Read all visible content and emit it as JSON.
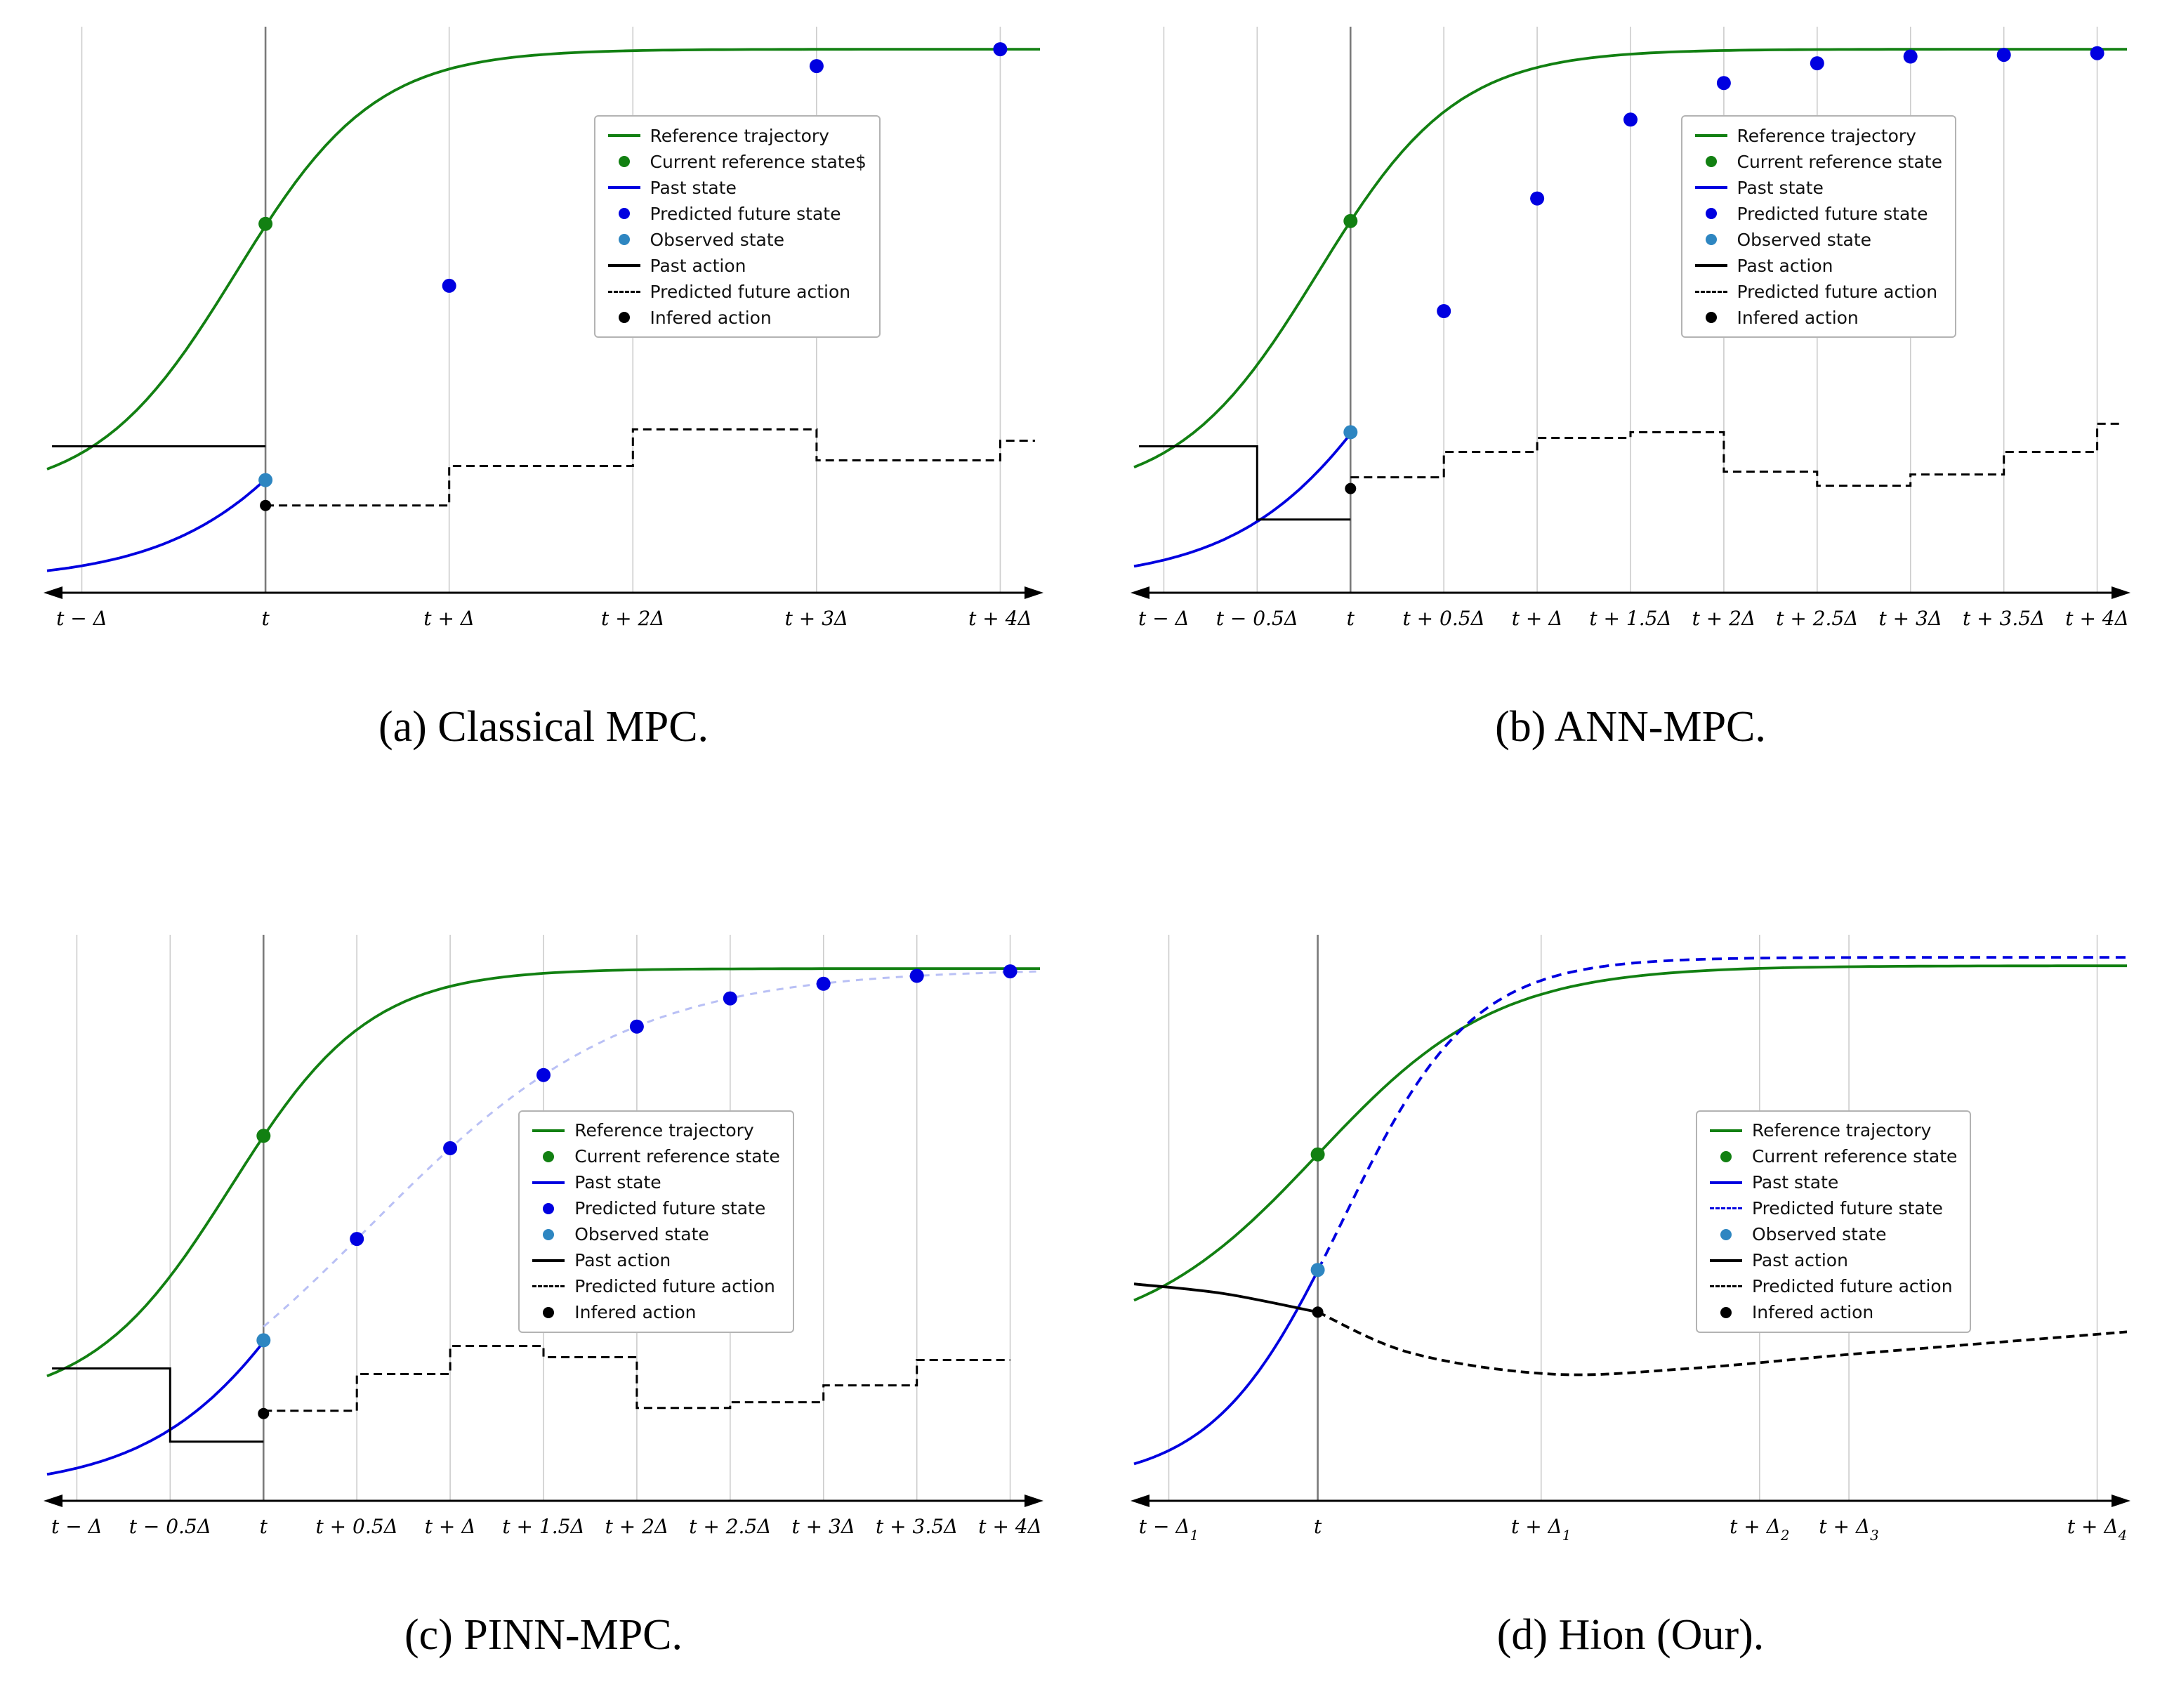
{
  "colors": {
    "reference": "#128012",
    "state": "#0000e0",
    "observed": "#2e86c1",
    "action": "#000000",
    "pinn": "#b9c0f5",
    "grid": "#cccccc",
    "now_line": "#7a7a7a"
  },
  "chart_data": [
    {
      "id": "a",
      "type": "line",
      "caption": "(a) Classical MPC.",
      "now_x": 0.22,
      "x_ticks": [
        {
          "label": "t − Δ",
          "x": 0.035
        },
        {
          "label": "t",
          "x": 0.22
        },
        {
          "label": "t + Δ",
          "x": 0.405
        },
        {
          "label": "t + 2Δ",
          "x": 0.59
        },
        {
          "label": "t + 3Δ",
          "x": 0.775
        },
        {
          "label": "t + 4Δ",
          "x": 0.96
        }
      ],
      "legend": {
        "x": 0.55,
        "y": 0.155,
        "entries": [
          {
            "swatch": "line",
            "color": "reference",
            "label": "Reference trajectory"
          },
          {
            "swatch": "dot",
            "color": "reference",
            "label": "Current reference state$"
          },
          {
            "swatch": "line",
            "color": "state",
            "label": "Past state"
          },
          {
            "swatch": "dot",
            "color": "state",
            "label": "Predicted future state"
          },
          {
            "swatch": "dot",
            "color": "observed",
            "label": "Observed state"
          },
          {
            "swatch": "line",
            "color": "action",
            "label": "Past action"
          },
          {
            "swatch": "dash",
            "color": "action",
            "label": "Predicted future action"
          },
          {
            "swatch": "dot",
            "color": "action",
            "label": "Infered action"
          }
        ]
      },
      "series": [
        {
          "name": "reference-trajectory",
          "kind": "sigmoid",
          "color": "reference",
          "x_range": [
            0,
            1
          ],
          "x0": 0.19,
          "s": 0.07,
          "y_min": 0.17,
          "y_max": 0.965
        },
        {
          "name": "past-state",
          "kind": "sigmoid",
          "color": "state",
          "x_range": [
            0,
            0.22
          ],
          "x0": 0.35,
          "s": 0.09,
          "y_min": 0.02,
          "y_max": 0.97
        },
        {
          "name": "past-action",
          "kind": "steps",
          "color": "action",
          "segments": [
            [
              0.005,
              0.22,
              0.26
            ]
          ]
        },
        {
          "name": "predicted-future-action",
          "kind": "steps",
          "color": "action",
          "dash": true,
          "dash_pattern": "12 7",
          "segments": [
            [
              0.22,
              0.405,
              0.155
            ],
            [
              0.405,
              0.59,
              0.225
            ],
            [
              0.59,
              0.775,
              0.29
            ],
            [
              0.775,
              0.96,
              0.235
            ],
            [
              0.96,
              0.995,
              0.27
            ]
          ]
        },
        {
          "name": "predicted-future-state",
          "kind": "dots",
          "color": "state",
          "points": [
            [
              0.405,
              0.545
            ],
            [
              0.59,
              0.79
            ],
            [
              0.775,
              0.935
            ],
            [
              0.96,
              0.965
            ]
          ]
        },
        {
          "name": "current-reference-state",
          "kind": "dots",
          "color": "reference",
          "points": [
            [
              0.22,
              0.655
            ]
          ]
        },
        {
          "name": "observed-state",
          "kind": "dots",
          "color": "observed",
          "points": [
            [
              0.22,
              0.2
            ]
          ]
        },
        {
          "name": "infered-action",
          "kind": "dots",
          "color": "action",
          "r": 8,
          "points": [
            [
              0.22,
              0.155
            ]
          ]
        }
      ]
    },
    {
      "id": "b",
      "type": "line",
      "caption": "(b) ANN-MPC.",
      "now_x": 0.218,
      "x_ticks": [
        {
          "label": "t − Δ",
          "x": 0.03
        },
        {
          "label": "t − 0.5Δ",
          "x": 0.124
        },
        {
          "label": "t",
          "x": 0.218
        },
        {
          "label": "t + 0.5Δ",
          "x": 0.312
        },
        {
          "label": "t + Δ",
          "x": 0.406
        },
        {
          "label": "t + 1.5Δ",
          "x": 0.5
        },
        {
          "label": "t + 2Δ",
          "x": 0.594
        },
        {
          "label": "t + 2.5Δ",
          "x": 0.688
        },
        {
          "label": "t + 3Δ",
          "x": 0.782
        },
        {
          "label": "t + 3.5Δ",
          "x": 0.876
        },
        {
          "label": "t + 4Δ",
          "x": 0.97
        }
      ],
      "legend": {
        "x": 0.55,
        "y": 0.155,
        "entries": [
          {
            "swatch": "line",
            "color": "reference",
            "label": "Reference trajectory"
          },
          {
            "swatch": "dot",
            "color": "reference",
            "label": "Current reference state"
          },
          {
            "swatch": "line",
            "color": "state",
            "label": "Past state"
          },
          {
            "swatch": "dot",
            "color": "state",
            "label": "Predicted future state"
          },
          {
            "swatch": "dot",
            "color": "observed",
            "label": "Observed state"
          },
          {
            "swatch": "line",
            "color": "action",
            "label": "Past action"
          },
          {
            "swatch": "dash",
            "color": "action",
            "label": "Predicted future action"
          },
          {
            "swatch": "dot",
            "color": "action",
            "label": "Infered action"
          }
        ]
      },
      "series": [
        {
          "name": "reference-trajectory",
          "kind": "sigmoid",
          "color": "reference",
          "x_range": [
            0,
            1
          ],
          "x0": 0.185,
          "s": 0.07,
          "y_min": 0.17,
          "y_max": 0.965
        },
        {
          "name": "past-state",
          "kind": "sigmoid",
          "color": "state",
          "x_range": [
            0,
            0.218
          ],
          "x0": 0.3,
          "s": 0.085,
          "y_min": 0.02,
          "y_max": 0.97
        },
        {
          "name": "past-action",
          "kind": "steps",
          "color": "action",
          "segments": [
            [
              0.005,
              0.124,
              0.26
            ],
            [
              0.124,
              0.218,
              0.13
            ]
          ]
        },
        {
          "name": "predicted-future-action",
          "kind": "steps",
          "color": "action",
          "dash": true,
          "dash_pattern": "12 7",
          "segments": [
            [
              0.218,
              0.312,
              0.205
            ],
            [
              0.312,
              0.406,
              0.25
            ],
            [
              0.406,
              0.5,
              0.275
            ],
            [
              0.5,
              0.594,
              0.285
            ],
            [
              0.594,
              0.688,
              0.215
            ],
            [
              0.688,
              0.782,
              0.19
            ],
            [
              0.782,
              0.876,
              0.21
            ],
            [
              0.876,
              0.97,
              0.25
            ],
            [
              0.97,
              0.995,
              0.3
            ]
          ]
        },
        {
          "name": "predicted-future-state",
          "kind": "dots",
          "color": "state",
          "points": [
            [
              0.312,
              0.5
            ],
            [
              0.406,
              0.7
            ],
            [
              0.5,
              0.84
            ],
            [
              0.594,
              0.905
            ],
            [
              0.688,
              0.94
            ],
            [
              0.782,
              0.952
            ],
            [
              0.876,
              0.955
            ],
            [
              0.97,
              0.958
            ]
          ]
        },
        {
          "name": "current-reference-state",
          "kind": "dots",
          "color": "reference",
          "points": [
            [
              0.218,
              0.66
            ]
          ]
        },
        {
          "name": "observed-state",
          "kind": "dots",
          "color": "observed",
          "points": [
            [
              0.218,
              0.285
            ]
          ]
        },
        {
          "name": "infered-action",
          "kind": "dots",
          "color": "action",
          "r": 8,
          "points": [
            [
              0.218,
              0.185
            ]
          ]
        }
      ]
    },
    {
      "id": "c",
      "type": "line",
      "caption": "(c) PINN-MPC.",
      "now_x": 0.218,
      "x_ticks": [
        {
          "label": "t − Δ",
          "x": 0.03
        },
        {
          "label": "t − 0.5Δ",
          "x": 0.124
        },
        {
          "label": "t",
          "x": 0.218
        },
        {
          "label": "t + 0.5Δ",
          "x": 0.312
        },
        {
          "label": "t + Δ",
          "x": 0.406
        },
        {
          "label": "t + 1.5Δ",
          "x": 0.5
        },
        {
          "label": "t + 2Δ",
          "x": 0.594
        },
        {
          "label": "t + 2.5Δ",
          "x": 0.688
        },
        {
          "label": "t + 3Δ",
          "x": 0.782
        },
        {
          "label": "t + 3.5Δ",
          "x": 0.876
        },
        {
          "label": "t + 4Δ",
          "x": 0.97
        }
      ],
      "legend": {
        "x": 0.475,
        "y": 0.295,
        "entries": [
          {
            "swatch": "line",
            "color": "reference",
            "label": "Reference trajectory"
          },
          {
            "swatch": "dot",
            "color": "reference",
            "label": "Current reference state"
          },
          {
            "swatch": "line",
            "color": "state",
            "label": "Past state"
          },
          {
            "swatch": "dot",
            "color": "state",
            "label": "Predicted future state"
          },
          {
            "swatch": "dot",
            "color": "observed",
            "label": "Observed state"
          },
          {
            "swatch": "line",
            "color": "action",
            "label": "Past action"
          },
          {
            "swatch": "dash",
            "color": "action",
            "label": "Predicted future action"
          },
          {
            "swatch": "dot",
            "color": "action",
            "label": "Infered action"
          }
        ]
      },
      "series": [
        {
          "name": "reference-trajectory",
          "kind": "sigmoid",
          "color": "reference",
          "x_range": [
            0,
            1
          ],
          "x0": 0.185,
          "s": 0.07,
          "y_min": 0.17,
          "y_max": 0.945
        },
        {
          "name": "past-state",
          "kind": "sigmoid",
          "color": "state",
          "x_range": [
            0,
            0.218
          ],
          "x0": 0.3,
          "s": 0.085,
          "y_min": 0.02,
          "y_max": 0.97
        },
        {
          "name": "predicted-state-curve",
          "kind": "sigmoid",
          "color": "pinn",
          "dash": true,
          "dash_pattern": "10 9",
          "width": 3,
          "x_range": [
            0.218,
            1
          ],
          "x0": 0.325,
          "s": 0.13,
          "y_min": 0.03,
          "y_max": 0.945
        },
        {
          "name": "past-action",
          "kind": "steps",
          "color": "action",
          "segments": [
            [
              0.005,
              0.124,
              0.235
            ],
            [
              0.124,
              0.218,
              0.105
            ]
          ]
        },
        {
          "name": "predicted-future-action",
          "kind": "steps",
          "color": "action",
          "dash": true,
          "dash_pattern": "12 7",
          "segments": [
            [
              0.218,
              0.312,
              0.16
            ],
            [
              0.312,
              0.406,
              0.225
            ],
            [
              0.406,
              0.5,
              0.275
            ],
            [
              0.5,
              0.594,
              0.255
            ],
            [
              0.594,
              0.688,
              0.165
            ],
            [
              0.688,
              0.782,
              0.175
            ],
            [
              0.782,
              0.876,
              0.205
            ],
            [
              0.876,
              0.97,
              0.25
            ]
          ]
        },
        {
          "name": "predicted-future-state",
          "kind": "dots",
          "color": "state",
          "points": [
            [
              0.312,
              0.465
            ],
            [
              0.406,
              0.626
            ],
            [
              0.5,
              0.756
            ],
            [
              0.594,
              0.842
            ],
            [
              0.688,
              0.892
            ],
            [
              0.782,
              0.918
            ],
            [
              0.876,
              0.932
            ],
            [
              0.97,
              0.94
            ]
          ]
        },
        {
          "name": "current-reference-state",
          "kind": "dots",
          "color": "reference",
          "points": [
            [
              0.218,
              0.648
            ]
          ]
        },
        {
          "name": "observed-state",
          "kind": "dots",
          "color": "observed",
          "points": [
            [
              0.218,
              0.285
            ]
          ]
        },
        {
          "name": "infered-action",
          "kind": "dots",
          "color": "action",
          "r": 8,
          "points": [
            [
              0.218,
              0.155
            ]
          ]
        }
      ]
    },
    {
      "id": "d",
      "type": "line",
      "caption": "(d) Hion (Our).",
      "now_x": 0.185,
      "x_ticks": [
        {
          "label": "t − Δ₁",
          "x": 0.035
        },
        {
          "label": "t",
          "x": 0.185
        },
        {
          "label": "t + Δ₁",
          "x": 0.41
        },
        {
          "label": "t + Δ₂",
          "x": 0.63
        },
        {
          "label": "t + Δ₃",
          "x": 0.72
        },
        {
          "label": "t + Δ₄",
          "x": 0.97
        }
      ],
      "legend": {
        "x": 0.565,
        "y": 0.295,
        "entries": [
          {
            "swatch": "line",
            "color": "reference",
            "label": "Reference trajectory"
          },
          {
            "swatch": "dot",
            "color": "reference",
            "label": "Current reference state"
          },
          {
            "swatch": "line",
            "color": "state",
            "label": "Past state"
          },
          {
            "swatch": "dash",
            "color": "state",
            "label": "Predicted future state"
          },
          {
            "swatch": "dot",
            "color": "observed",
            "label": "Observed state"
          },
          {
            "swatch": "line",
            "color": "action",
            "label": "Past action"
          },
          {
            "swatch": "dash",
            "color": "action",
            "label": "Predicted future action"
          },
          {
            "swatch": "dot",
            "color": "action",
            "label": "Infered action"
          }
        ]
      },
      "series": [
        {
          "name": "reference-trajectory",
          "kind": "sigmoid",
          "color": "reference",
          "x_range": [
            0,
            1
          ],
          "x0": 0.185,
          "s": 0.09,
          "y_min": 0.28,
          "y_max": 0.95
        },
        {
          "name": "past-state",
          "kind": "sigmoid",
          "color": "state",
          "x_range": [
            0,
            0.185
          ],
          "x0": 0.21,
          "s": 0.065,
          "y_min": 0.03,
          "y_max": 0.965
        },
        {
          "name": "predicted-future-state",
          "kind": "sigmoid",
          "color": "state",
          "dash": true,
          "dash_pattern": "14 9",
          "x_range": [
            0.185,
            1
          ],
          "x0": 0.21,
          "s": 0.065,
          "y_min": 0.03,
          "y_max": 0.965
        },
        {
          "name": "past-action",
          "kind": "smooth",
          "color": "action",
          "points": [
            [
              0,
              0.385
            ],
            [
              0.09,
              0.368
            ],
            [
              0.185,
              0.335
            ]
          ]
        },
        {
          "name": "predicted-future-action",
          "kind": "smooth",
          "color": "action",
          "dash": true,
          "dash_pattern": "12 7",
          "points": [
            [
              0.185,
              0.335
            ],
            [
              0.28,
              0.262
            ],
            [
              0.42,
              0.225
            ],
            [
              0.56,
              0.235
            ],
            [
              0.72,
              0.26
            ],
            [
              0.86,
              0.28
            ],
            [
              1,
              0.3
            ]
          ]
        },
        {
          "name": "current-reference-state",
          "kind": "dots",
          "color": "reference",
          "points": [
            [
              0.185,
              0.615
            ]
          ]
        },
        {
          "name": "observed-state",
          "kind": "dots",
          "color": "observed",
          "points": [
            [
              0.185,
              0.41
            ]
          ]
        },
        {
          "name": "infered-action",
          "kind": "dots",
          "color": "action",
          "r": 8,
          "points": [
            [
              0.185,
              0.335
            ]
          ]
        }
      ]
    }
  ]
}
